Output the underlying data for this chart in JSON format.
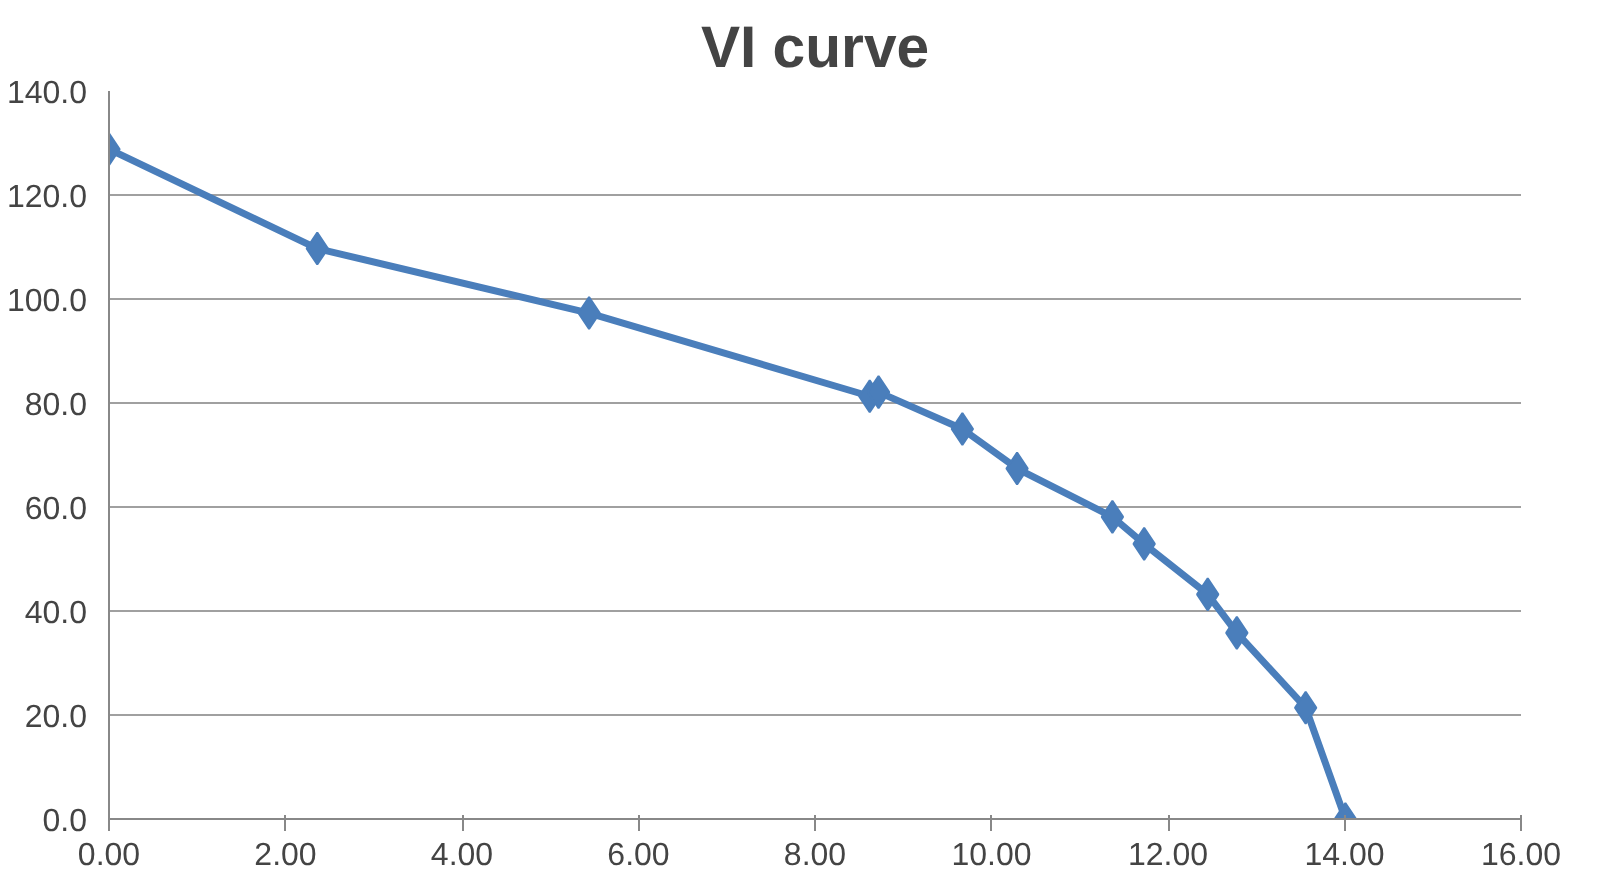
{
  "chart_data": {
    "type": "line",
    "title": "VI curve",
    "x": [
      0,
      2.36,
      5.44,
      8.62,
      8.72,
      9.67,
      10.29,
      11.37,
      11.73,
      12.45,
      12.78,
      13.56,
      14.01
    ],
    "series": [
      {
        "color": "#4a7ebb",
        "values": [
          128.8,
          109.7,
          97.3,
          81.3,
          82.1,
          75.0,
          67.4,
          58.1,
          52.9,
          43.2,
          35.8,
          21.4,
          0.0
        ]
      }
    ],
    "xlim": [
      0,
      16
    ],
    "xticks": [
      {
        "value": 0,
        "label": "0.00"
      },
      {
        "value": 2,
        "label": "2.00"
      },
      {
        "value": 4,
        "label": "4.00"
      },
      {
        "value": 6,
        "label": "6.00"
      },
      {
        "value": 8,
        "label": "8.00"
      },
      {
        "value": 10,
        "label": "10.00"
      },
      {
        "value": 12,
        "label": "12.00"
      },
      {
        "value": 14,
        "label": "14.00"
      },
      {
        "value": 16,
        "label": "16.00"
      }
    ],
    "ylim": [
      0,
      140
    ],
    "yticks": [
      {
        "value": 0,
        "label": "0.0"
      },
      {
        "value": 20,
        "label": "20.0"
      },
      {
        "value": 40,
        "label": "40.0"
      },
      {
        "value": 60,
        "label": "60.0"
      },
      {
        "value": 80,
        "label": "80.0"
      },
      {
        "value": 100,
        "label": "100.0"
      },
      {
        "value": 120,
        "label": "120.0"
      },
      {
        "value": 140,
        "label": "140.0"
      }
    ],
    "grid": "y",
    "marker": "diamond",
    "line_style": "solid"
  }
}
